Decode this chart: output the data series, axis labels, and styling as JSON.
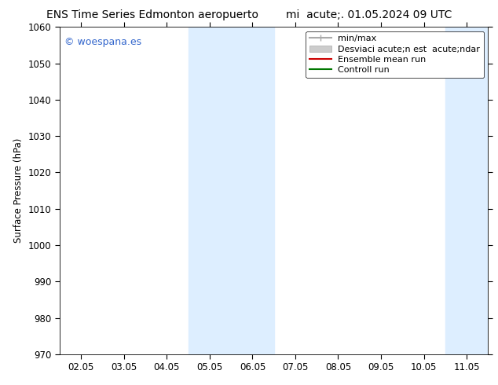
{
  "title_left": "ENS Time Series Edmonton aeropuerto",
  "title_right": "mi  acute;. 01.05.2024 09 UTC",
  "ylabel": "Surface Pressure (hPa)",
  "ylim": [
    970,
    1060
  ],
  "yticks": [
    970,
    980,
    990,
    1000,
    1010,
    1020,
    1030,
    1040,
    1050,
    1060
  ],
  "xtick_labels": [
    "02.05",
    "03.05",
    "04.05",
    "05.05",
    "06.05",
    "07.05",
    "08.05",
    "09.05",
    "10.05",
    "11.05"
  ],
  "xtick_values": [
    0,
    1,
    2,
    3,
    4,
    5,
    6,
    7,
    8,
    9
  ],
  "xlim": [
    -0.5,
    9.5
  ],
  "shaded_bands": [
    {
      "xmin": 2.5,
      "xmax": 4.5
    },
    {
      "xmin": 8.5,
      "xmax": 9.5
    }
  ],
  "band_color": "#ddeeff",
  "watermark": "© woespana.es",
  "watermark_color": "#3366cc",
  "legend_entries": [
    {
      "label": "min/max",
      "color": "#aaaaaa",
      "type": "hline"
    },
    {
      "label": "Desviaci acute;n est  acute;ndar",
      "color": "#cccccc",
      "type": "patch"
    },
    {
      "label": "Ensemble mean run",
      "color": "#cc0000",
      "type": "line"
    },
    {
      "label": "Controll run",
      "color": "#007700",
      "type": "line"
    }
  ],
  "bg_color": "#ffffff",
  "title_fontsize": 10,
  "tick_fontsize": 8.5,
  "legend_fontsize": 8
}
